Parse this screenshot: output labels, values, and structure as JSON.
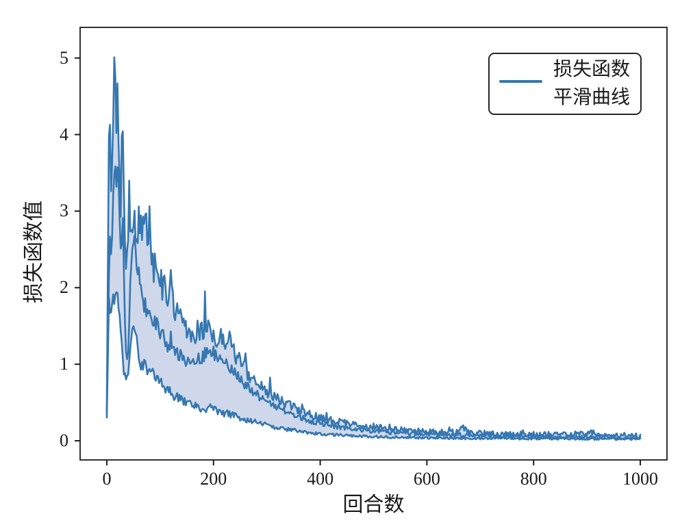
{
  "chart_data": {
    "type": "line",
    "title": "",
    "xlabel": "回合数",
    "ylabel": "损失函数值",
    "xlim": [
      -50,
      1050
    ],
    "ylim": [
      -0.25,
      5.4
    ],
    "x_ticks": [
      0,
      200,
      400,
      600,
      800,
      1000
    ],
    "y_ticks": [
      0,
      1,
      2,
      3,
      4,
      5
    ],
    "grid": false,
    "legend": {
      "position": "upper right",
      "entries": [
        {
          "label": "损失函数",
          "handle": "line"
        },
        {
          "label": "平滑曲线",
          "handle": "none"
        }
      ]
    },
    "colors": {
      "line": "#3577b1",
      "band_fill": "#cfd8ea",
      "axis": "#1c1c1c",
      "text": "#1a1a1a",
      "background": "#ffffff"
    },
    "series": [
      {
        "name": "loss_upper_envelope",
        "keypoints": [
          [
            0,
            0.4
          ],
          [
            3,
            3.0
          ],
          [
            5,
            4.85
          ],
          [
            7,
            3.5
          ],
          [
            9,
            3.3
          ],
          [
            12,
            4.2
          ],
          [
            14,
            5.15
          ],
          [
            16,
            4.6
          ],
          [
            18,
            3.9
          ],
          [
            20,
            4.45
          ],
          [
            23,
            3.6
          ],
          [
            26,
            3.1
          ],
          [
            28,
            3.9
          ],
          [
            30,
            4.15
          ],
          [
            33,
            2.6
          ],
          [
            36,
            2.2
          ],
          [
            40,
            2.45
          ],
          [
            44,
            2.9
          ],
          [
            48,
            2.6
          ],
          [
            52,
            2.95
          ],
          [
            56,
            2.5
          ],
          [
            60,
            3.0
          ],
          [
            64,
            2.8
          ],
          [
            68,
            2.5
          ],
          [
            72,
            2.9
          ],
          [
            76,
            2.6
          ],
          [
            80,
            2.95
          ],
          [
            84,
            2.4
          ],
          [
            88,
            2.2
          ],
          [
            92,
            2.45
          ],
          [
            96,
            2.1
          ],
          [
            100,
            2.15
          ],
          [
            105,
            1.95
          ],
          [
            110,
            2.05
          ],
          [
            115,
            1.8
          ],
          [
            119,
            2.3
          ],
          [
            124,
            1.8
          ],
          [
            128,
            1.7
          ],
          [
            133,
            1.75
          ],
          [
            138,
            1.6
          ],
          [
            143,
            1.55
          ],
          [
            148,
            1.5
          ],
          [
            153,
            1.45
          ],
          [
            158,
            1.4
          ],
          [
            163,
            1.45
          ],
          [
            168,
            1.35
          ],
          [
            173,
            1.4
          ],
          [
            178,
            1.45
          ],
          [
            183,
            1.5
          ],
          [
            188,
            1.45
          ],
          [
            193,
            1.5
          ],
          [
            198,
            1.4
          ],
          [
            203,
            1.35
          ],
          [
            208,
            1.3
          ],
          [
            213,
            1.4
          ],
          [
            218,
            1.35
          ],
          [
            223,
            1.3
          ],
          [
            228,
            1.35
          ],
          [
            233,
            1.25
          ],
          [
            238,
            1.15
          ],
          [
            243,
            1.1
          ],
          [
            248,
            1.05
          ],
          [
            253,
            1.0
          ],
          [
            258,
            0.95
          ],
          [
            263,
            0.9
          ],
          [
            268,
            0.85
          ],
          [
            273,
            0.82
          ],
          [
            278,
            0.8
          ],
          [
            285,
            0.75
          ],
          [
            292,
            0.7
          ],
          [
            300,
            0.65
          ],
          [
            310,
            0.6
          ],
          [
            320,
            0.55
          ],
          [
            330,
            0.5
          ],
          [
            340,
            0.48
          ],
          [
            350,
            0.43
          ],
          [
            360,
            0.4
          ],
          [
            370,
            0.37
          ],
          [
            380,
            0.35
          ],
          [
            390,
            0.32
          ],
          [
            400,
            0.3
          ],
          [
            415,
            0.27
          ],
          [
            430,
            0.25
          ],
          [
            445,
            0.23
          ],
          [
            460,
            0.21
          ],
          [
            475,
            0.2
          ],
          [
            490,
            0.18
          ],
          [
            510,
            0.17
          ],
          [
            530,
            0.15
          ],
          [
            550,
            0.14
          ],
          [
            575,
            0.13
          ],
          [
            600,
            0.12
          ],
          [
            625,
            0.12
          ],
          [
            650,
            0.11
          ],
          [
            667,
            0.18
          ],
          [
            680,
            0.1
          ],
          [
            700,
            0.1
          ],
          [
            730,
            0.09
          ],
          [
            760,
            0.09
          ],
          [
            790,
            0.085
          ],
          [
            820,
            0.08
          ],
          [
            850,
            0.08
          ],
          [
            880,
            0.09
          ],
          [
            905,
            0.12
          ],
          [
            920,
            0.08
          ],
          [
            950,
            0.07
          ],
          [
            975,
            0.07
          ],
          [
            1000,
            0.065
          ]
        ]
      },
      {
        "name": "smoothed_mean",
        "keypoints": [
          [
            0,
            0.35
          ],
          [
            3,
            1.9
          ],
          [
            6,
            2.6
          ],
          [
            9,
            2.4
          ],
          [
            12,
            3.1
          ],
          [
            15,
            3.85
          ],
          [
            18,
            3.3
          ],
          [
            21,
            3.5
          ],
          [
            24,
            2.9
          ],
          [
            27,
            2.5
          ],
          [
            30,
            2.8
          ],
          [
            33,
            1.9
          ],
          [
            36,
            1.2
          ],
          [
            39,
            0.95
          ],
          [
            42,
            1.6
          ],
          [
            45,
            2.2
          ],
          [
            48,
            2.5
          ],
          [
            51,
            2.75
          ],
          [
            54,
            2.4
          ],
          [
            57,
            2.1
          ],
          [
            60,
            2.2
          ],
          [
            65,
            1.9
          ],
          [
            70,
            1.8
          ],
          [
            75,
            1.7
          ],
          [
            80,
            1.75
          ],
          [
            85,
            1.6
          ],
          [
            90,
            1.55
          ],
          [
            95,
            1.5
          ],
          [
            100,
            1.45
          ],
          [
            107,
            1.35
          ],
          [
            114,
            1.25
          ],
          [
            120,
            1.3
          ],
          [
            126,
            1.2
          ],
          [
            133,
            1.15
          ],
          [
            140,
            1.1
          ],
          [
            147,
            1.05
          ],
          [
            155,
            1.05
          ],
          [
            162,
            1.0
          ],
          [
            170,
            1.05
          ],
          [
            178,
            1.1
          ],
          [
            186,
            1.15
          ],
          [
            194,
            1.2
          ],
          [
            200,
            1.15
          ],
          [
            207,
            1.1
          ],
          [
            214,
            1.12
          ],
          [
            221,
            1.05
          ],
          [
            228,
            1.0
          ],
          [
            235,
            0.95
          ],
          [
            242,
            0.88
          ],
          [
            250,
            0.8
          ],
          [
            258,
            0.75
          ],
          [
            266,
            0.7
          ],
          [
            274,
            0.65
          ],
          [
            282,
            0.6
          ],
          [
            290,
            0.56
          ],
          [
            300,
            0.52
          ],
          [
            312,
            0.47
          ],
          [
            324,
            0.42
          ],
          [
            336,
            0.38
          ],
          [
            350,
            0.34
          ],
          [
            364,
            0.3
          ],
          [
            378,
            0.27
          ],
          [
            392,
            0.24
          ],
          [
            406,
            0.22
          ],
          [
            420,
            0.2
          ],
          [
            436,
            0.18
          ],
          [
            452,
            0.16
          ],
          [
            470,
            0.15
          ],
          [
            490,
            0.13
          ],
          [
            510,
            0.12
          ],
          [
            535,
            0.11
          ],
          [
            560,
            0.1
          ],
          [
            590,
            0.09
          ],
          [
            620,
            0.08
          ],
          [
            650,
            0.08
          ],
          [
            680,
            0.07
          ],
          [
            710,
            0.07
          ],
          [
            745,
            0.06
          ],
          [
            780,
            0.06
          ],
          [
            820,
            0.055
          ],
          [
            860,
            0.05
          ],
          [
            900,
            0.05
          ],
          [
            940,
            0.045
          ],
          [
            970,
            0.04
          ],
          [
            1000,
            0.04
          ]
        ]
      },
      {
        "name": "loss_lower_envelope",
        "keypoints": [
          [
            0,
            0.3
          ],
          [
            4,
            1.8
          ],
          [
            8,
            1.7
          ],
          [
            12,
            1.85
          ],
          [
            16,
            2.0
          ],
          [
            20,
            1.85
          ],
          [
            24,
            1.6
          ],
          [
            28,
            1.3
          ],
          [
            32,
            0.9
          ],
          [
            36,
            0.82
          ],
          [
            40,
            0.9
          ],
          [
            44,
            1.2
          ],
          [
            48,
            1.45
          ],
          [
            52,
            1.5
          ],
          [
            56,
            1.35
          ],
          [
            60,
            1.1
          ],
          [
            65,
            1.0
          ],
          [
            70,
            0.97
          ],
          [
            75,
            0.95
          ],
          [
            80,
            0.92
          ],
          [
            85,
            0.9
          ],
          [
            90,
            0.87
          ],
          [
            95,
            0.82
          ],
          [
            100,
            0.78
          ],
          [
            108,
            0.7
          ],
          [
            116,
            0.65
          ],
          [
            124,
            0.6
          ],
          [
            132,
            0.57
          ],
          [
            140,
            0.53
          ],
          [
            148,
            0.5
          ],
          [
            156,
            0.48
          ],
          [
            164,
            0.46
          ],
          [
            172,
            0.44
          ],
          [
            180,
            0.42
          ],
          [
            188,
            0.43
          ],
          [
            196,
            0.42
          ],
          [
            204,
            0.4
          ],
          [
            212,
            0.39
          ],
          [
            220,
            0.37
          ],
          [
            228,
            0.35
          ],
          [
            236,
            0.33
          ],
          [
            244,
            0.31
          ],
          [
            252,
            0.3
          ],
          [
            260,
            0.28
          ],
          [
            270,
            0.26
          ],
          [
            280,
            0.24
          ],
          [
            292,
            0.22
          ],
          [
            304,
            0.2
          ],
          [
            316,
            0.18
          ],
          [
            330,
            0.16
          ],
          [
            344,
            0.14
          ],
          [
            358,
            0.13
          ],
          [
            372,
            0.11
          ],
          [
            386,
            0.1
          ],
          [
            400,
            0.09
          ],
          [
            420,
            0.08
          ],
          [
            440,
            0.07
          ],
          [
            460,
            0.065
          ],
          [
            480,
            0.06
          ],
          [
            500,
            0.055
          ],
          [
            530,
            0.05
          ],
          [
            560,
            0.045
          ],
          [
            600,
            0.04
          ],
          [
            650,
            0.035
          ],
          [
            700,
            0.03
          ],
          [
            750,
            0.03
          ],
          [
            800,
            0.028
          ],
          [
            850,
            0.027
          ],
          [
            900,
            0.026
          ],
          [
            950,
            0.025
          ],
          [
            1000,
            0.025
          ]
        ]
      }
    ],
    "band_between": [
      "loss_upper_envelope",
      "loss_lower_envelope"
    ],
    "noise": {
      "seed": 11,
      "step": 2,
      "upper": {
        "base": 0.03,
        "scale": 0.11,
        "spike_prob": 0.03,
        "spike_scale": 0.5
      },
      "mean": {
        "base": 0.02,
        "scale": 0.07
      },
      "lower": {
        "base": 0.012,
        "scale": 0.045
      }
    }
  }
}
